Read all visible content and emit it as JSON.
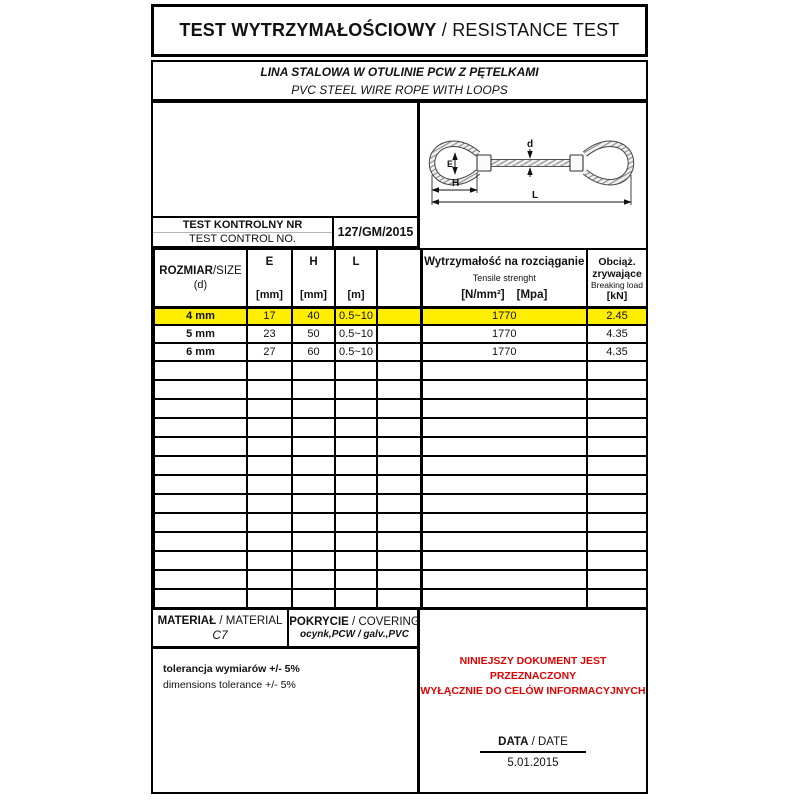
{
  "title": {
    "pl": "TEST WYTRZYMAŁOŚCIOWY",
    "sep": " / ",
    "en": "RESISTANCE TEST"
  },
  "subtitle": {
    "pl": "LINA STALOWA W OTULINIE PCW Z PĘTELKAMI",
    "en": "PVC STEEL WIRE ROPE WITH LOOPS"
  },
  "test_control": {
    "label_pl": "TEST KONTROLNY NR",
    "label_en": "TEST CONTROL NO.",
    "value": "127/GM/2015"
  },
  "diagram": {
    "label_d": "d",
    "label_e": "E",
    "label_h": "H",
    "label_l": "L"
  },
  "table": {
    "headers": {
      "size_pl": "ROZMIAR",
      "size_sep": "/SIZE",
      "size_sub": "(d)",
      "col_e": "E",
      "col_h": "H",
      "col_l": "L",
      "unit_mm": "[mm]",
      "unit_m": "[m]",
      "tensile_pl": "Wytrzymałość na rozciąganie",
      "tensile_en": "Tensile strenght",
      "tensile_u1": "[N/mm²]",
      "tensile_u2": "[Mpa]",
      "breaking_pl1": "Obciąż.",
      "breaking_pl2": "zrywające",
      "breaking_en": "Breaking load",
      "breaking_unit": "[kN]"
    },
    "rows": [
      {
        "size": "4 mm",
        "e": "17",
        "h": "40",
        "l": "0.5~10",
        "tensile": "1770",
        "breaking": "2.45",
        "highlighted": true
      },
      {
        "size": "5 mm",
        "e": "23",
        "h": "50",
        "l": "0.5~10",
        "tensile": "1770",
        "breaking": "4.35",
        "highlighted": false
      },
      {
        "size": "6 mm",
        "e": "27",
        "h": "60",
        "l": "0.5~10",
        "tensile": "1770",
        "breaking": "4.35",
        "highlighted": false
      }
    ],
    "empty_row_count": 13
  },
  "material": {
    "label_pl": "MATERIAŁ",
    "sep": " / ",
    "label_en": "MATERIAL",
    "value": "C7"
  },
  "covering": {
    "label_pl": "POKRYCIE",
    "sep": " / ",
    "label_en": "COVERING",
    "value": "ocynk,PCW / galv.,PVC"
  },
  "tolerance": {
    "pl": "tolerancja wymiarów +/- 5%",
    "en": "dimensions tolerance +/- 5%"
  },
  "notice": {
    "line1": "NINIEJSZY DOKUMENT JEST PRZEZNACZONY",
    "line2": "WYŁĄCZNIE DO CELÓW INFORMACYJNYCH"
  },
  "date": {
    "label_pl": "DATA",
    "sep": " / ",
    "label_en": "DATE",
    "value": "5.01.2015"
  },
  "colors": {
    "highlight": "#ffee00",
    "notice_red": "#e30000",
    "border": "#000000"
  }
}
